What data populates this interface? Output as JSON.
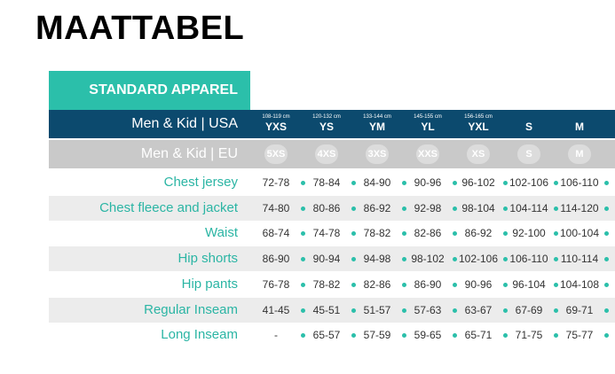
{
  "page": {
    "title": "MAATTABEL"
  },
  "tab": {
    "label": "STANDARD APPAREL"
  },
  "colors": {
    "accent": "#2bbfaa",
    "navy": "#0c4a6e",
    "grey_band": "#c9c9c9",
    "row_shade": "#ececec",
    "label_teal": "#2bb5a4"
  },
  "header_us": {
    "label": "Men & Kid | USA",
    "columns": [
      {
        "cm": "108-119 cm",
        "size": "YXS"
      },
      {
        "cm": "120-132 cm",
        "size": "YS"
      },
      {
        "cm": "133-144 cm",
        "size": "YM"
      },
      {
        "cm": "145-155 cm",
        "size": "YL"
      },
      {
        "cm": "156-165 cm",
        "size": "YXL"
      },
      {
        "cm": "",
        "size": "S"
      },
      {
        "cm": "",
        "size": "M"
      }
    ]
  },
  "header_eu": {
    "label": "Men & Kid | EU",
    "sizes": [
      "5XS",
      "4XS",
      "3XS",
      "XXS",
      "XS",
      "S",
      "M"
    ]
  },
  "rows": [
    {
      "label": "Chest jersey",
      "values": [
        "72-78",
        "78-84",
        "84-90",
        "90-96",
        "96-102",
        "102-106",
        "106-110"
      ]
    },
    {
      "label": "Chest fleece and jacket",
      "values": [
        "74-80",
        "80-86",
        "86-92",
        "92-98",
        "98-104",
        "104-114",
        "114-120"
      ]
    },
    {
      "label": "Waist",
      "values": [
        "68-74",
        "74-78",
        "78-82",
        "82-86",
        "86-92",
        "92-100",
        "100-104"
      ]
    },
    {
      "label": "Hip shorts",
      "values": [
        "86-90",
        "90-94",
        "94-98",
        "98-102",
        "102-106",
        "106-110",
        "110-114"
      ]
    },
    {
      "label": "Hip pants",
      "values": [
        "76-78",
        "78-82",
        "82-86",
        "86-90",
        "90-96",
        "96-104",
        "104-108"
      ]
    },
    {
      "label": "Regular Inseam",
      "values": [
        "41-45",
        "45-51",
        "51-57",
        "57-63",
        "63-67",
        "67-69",
        "69-71"
      ]
    },
    {
      "label": "Long Inseam",
      "values": [
        "-",
        "65-57",
        "57-59",
        "59-65",
        "65-71",
        "71-75",
        "75-77"
      ]
    }
  ]
}
